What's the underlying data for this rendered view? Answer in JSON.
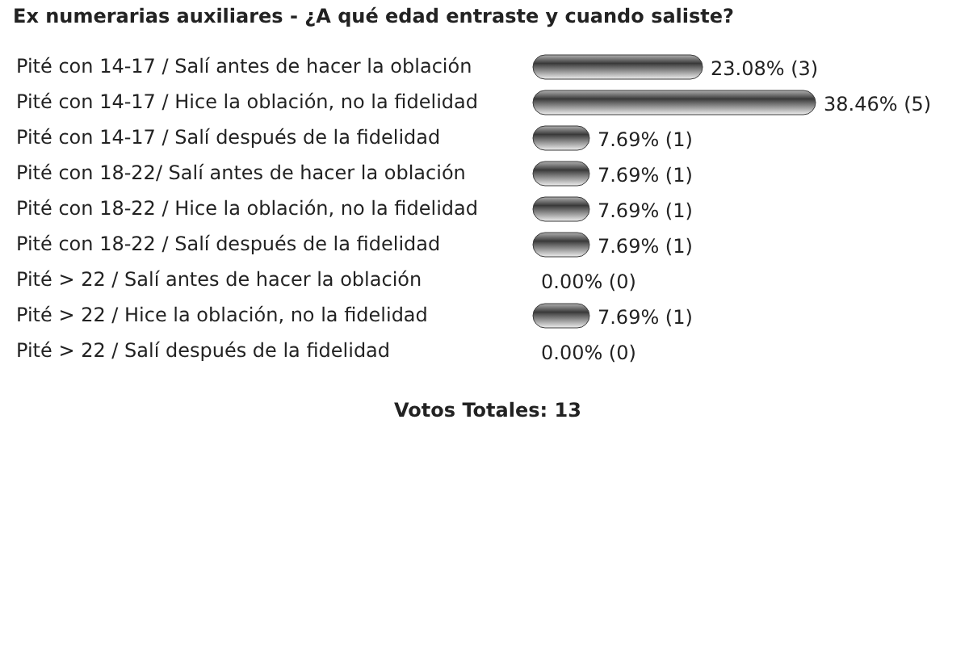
{
  "chart_data": {
    "type": "bar",
    "orientation": "horizontal",
    "title": "Ex numerarias auxiliares - ¿A qué edad entraste y cuando saliste?",
    "categories": [
      "Pité con 14-17 / Salí antes de hacer la oblación",
      "Pité con 14-17 / Hice la oblación, no la fidelidad",
      "Pité con 14-17 / Salí después de la fidelidad",
      "Pité con 18-22/ Salí antes de hacer la oblación",
      "Pité con 18-22 / Hice la oblación, no la fidelidad",
      "Pité con 18-22 / Salí después de la fidelidad",
      "Pité > 22 / Salí antes de hacer la oblación",
      "Pité > 22 / Hice la oblación, no la fidelidad",
      "Pité > 22 / Salí después de la fidelidad"
    ],
    "values": [
      23.08,
      38.46,
      7.69,
      7.69,
      7.69,
      7.69,
      0,
      7.69,
      0
    ],
    "value_labels": [
      "23.08% (3)",
      "38.46% (5)",
      "7.69% (1)",
      "7.69% (1)",
      "7.69% (1)",
      "7.69% (1)",
      "0.00% (0)",
      "7.69% (1)",
      "0.00% (0)"
    ],
    "color": "#3a3a3a",
    "tick_labels": "y",
    "annotations": [
      "Votos Totales: 13"
    ]
  }
}
